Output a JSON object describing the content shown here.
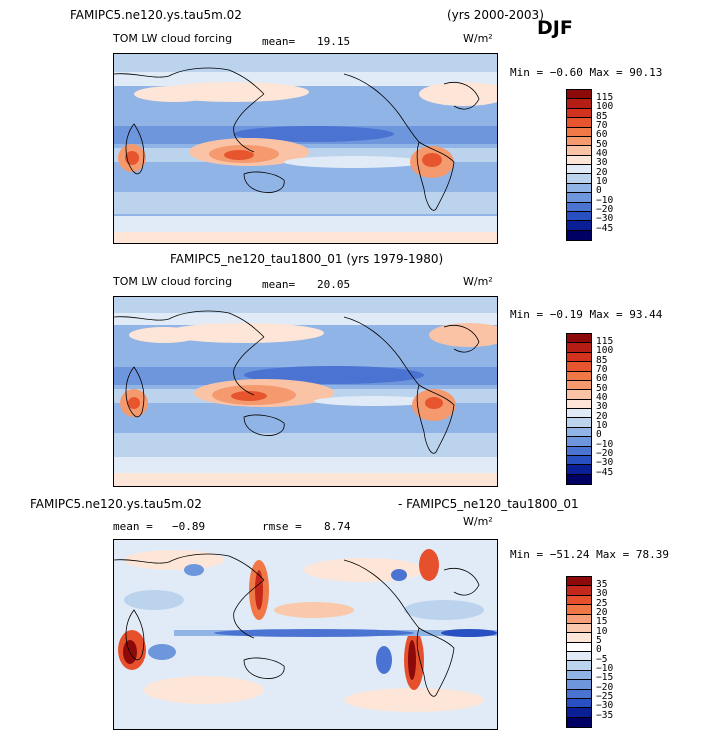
{
  "header": {
    "title_left": "FAMIPC5.ne120.ys.tau5m.02",
    "years_right": "(yrs 2000-2003)",
    "season": "DJF"
  },
  "panels": [
    {
      "title": "",
      "field_label": "TOM LW cloud forcing",
      "mean_label": "mean=",
      "mean_value": "19.15",
      "units": "W/m²",
      "min_max": "Min =  −0.60 Max =  90.13",
      "colorbar_labels": [
        "115",
        "100",
        "85",
        "70",
        "60",
        "50",
        "40",
        "30",
        "20",
        "10",
        "0",
        "−10",
        "−20",
        "−30",
        "−45"
      ]
    },
    {
      "title": "FAMIPC5_ne120_tau1800_01 (yrs 1979-1980)",
      "field_label": "TOM LW cloud forcing",
      "mean_label": "mean=",
      "mean_value": "20.05",
      "units": "W/m²",
      "min_max": "Min =  −0.19 Max =  93.44",
      "colorbar_labels": [
        "115",
        "100",
        "85",
        "70",
        "60",
        "50",
        "40",
        "30",
        "20",
        "10",
        "0",
        "−10",
        "−20",
        "−30",
        "−45"
      ]
    },
    {
      "title_left": "FAMIPC5.ne120.ys.tau5m.02",
      "title_right": "- FAMIPC5_ne120_tau1800_01",
      "mean_label": "mean =",
      "mean_value": "−0.89",
      "rmse_label": "rmse =",
      "rmse_value": "8.74",
      "units": "W/m²",
      "min_max": "Min = −51.24 Max =  78.39",
      "colorbar_labels": [
        "35",
        "30",
        "25",
        "20",
        "15",
        "10",
        "5",
        "0",
        "−5",
        "−10",
        "−15",
        "−20",
        "−25",
        "−30",
        "−35"
      ]
    }
  ],
  "colors": {
    "abs_scale": [
      "#8c0a0a",
      "#b41e14",
      "#d2321e",
      "#e6552d",
      "#f07846",
      "#f59a6e",
      "#fac3a5",
      "#fde6d8",
      "#e0ebf7",
      "#bcd3ee",
      "#91b4e6",
      "#6e96dc",
      "#4b73d2",
      "#2850c3",
      "#0a1e96",
      "#000064"
    ],
    "diff_scale": [
      "#8c0a0a",
      "#c3281a",
      "#e6502d",
      "#f07846",
      "#f5a078",
      "#fac8aa",
      "#fde6d8",
      "#ffffff",
      "#e0ebf7",
      "#bcd3ee",
      "#91b4e6",
      "#6e96dc",
      "#4b73d2",
      "#2850c3",
      "#0a1e96",
      "#000064"
    ]
  }
}
